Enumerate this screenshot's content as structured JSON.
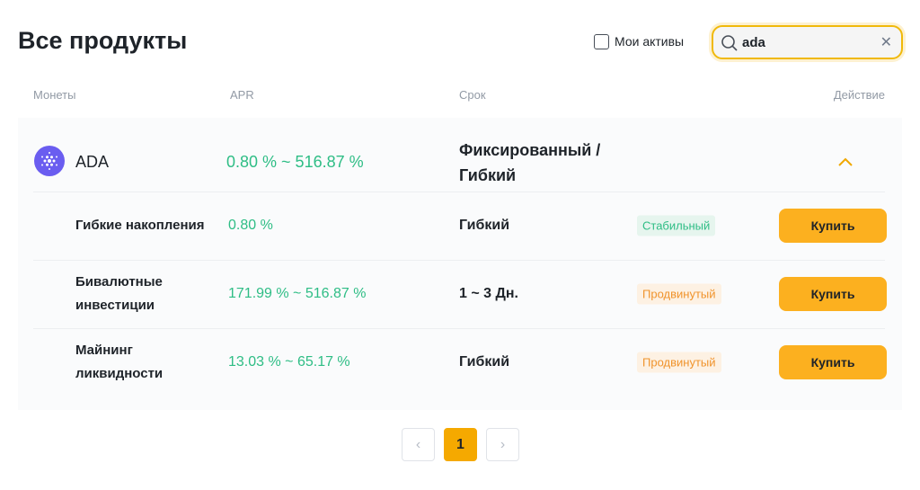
{
  "header": {
    "title": "Все продукты",
    "my_assets_label": "Мои активы",
    "my_assets_checked": false,
    "search_value": "ada",
    "search_icon": "search-icon",
    "clear_icon": "close-icon"
  },
  "columns": [
    "Монеты",
    "APR",
    "Срок",
    "Действие"
  ],
  "coin": {
    "name": "ADA",
    "apr": "0.80 % ~ 516.87 %",
    "term_line1": "Фиксированный /",
    "term_line2": "Гибкий",
    "expanded": true
  },
  "products": [
    {
      "name": "Гибкие накопления",
      "apr": "0.80 %",
      "term": "Гибкий",
      "badge": "Стабильный",
      "badge_type": "green",
      "action": "Купить"
    },
    {
      "name": "Бивалютные инвестиции",
      "apr": "171.99 % ~ 516.87 %",
      "term": "1 ~ 3 Дн.",
      "badge": "Продвинутый",
      "badge_type": "orange",
      "action": "Купить"
    },
    {
      "name": "Майнинг ликвидности",
      "apr": "13.03 % ~ 65.17 %",
      "term": "Гибкий",
      "badge": "Продвинутый",
      "badge_type": "orange",
      "action": "Купить"
    }
  ],
  "pagination": {
    "current": "1",
    "prev": "‹",
    "next": "›"
  },
  "colors": {
    "accent": "#fcb01f",
    "green": "#2ebd85",
    "orange": "#f0932b"
  }
}
